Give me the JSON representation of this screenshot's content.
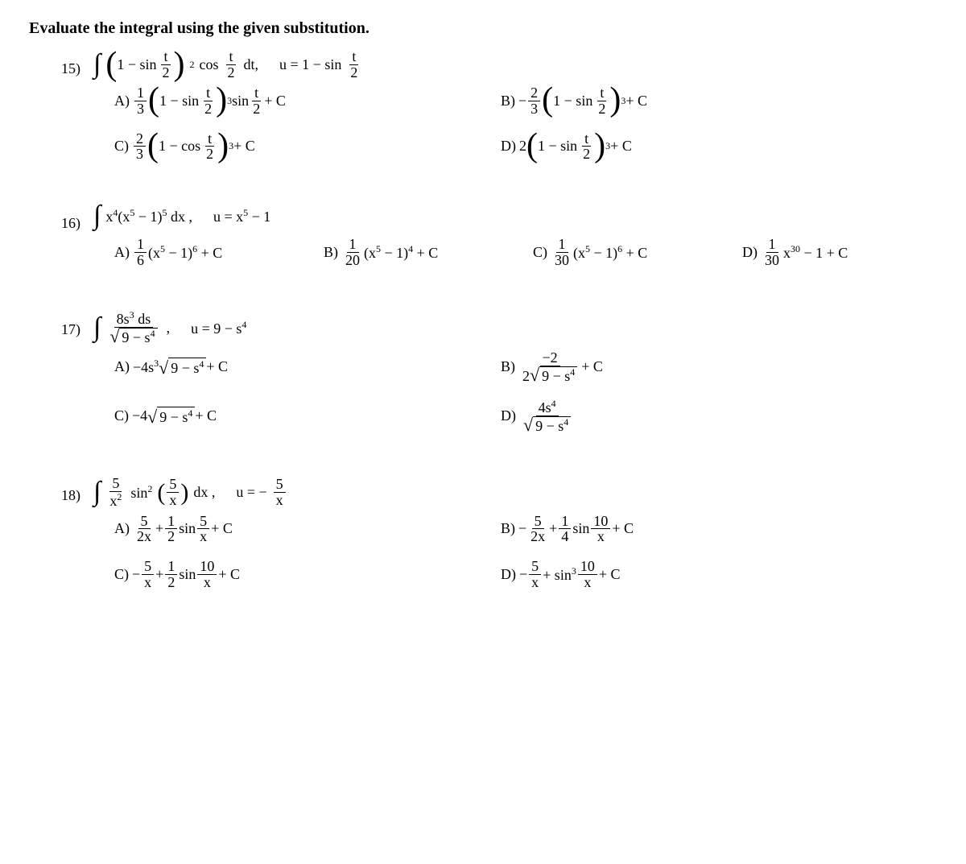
{
  "header": "Evaluate the integral using the given substitution.",
  "labels": {
    "A": "A)",
    "B": "B)",
    "C": "C)",
    "D": "D)"
  },
  "p15": {
    "num": "15)",
    "stem": {
      "int": "∫",
      "one_minus_sin": "1 − sin",
      "t_over_2_num": "t",
      "t_over_2_den": "2",
      "pow2": "2",
      "cos": "cos",
      "dt": "dt,",
      "u_eq": "u = 1 − sin"
    },
    "A": {
      "coef_num": "1",
      "coef_den": "3",
      "body": "1 − sin",
      "pow": "3",
      "tail": "sin",
      "plusC": "+ C"
    },
    "B": {
      "lead": "−",
      "coef_num": "2",
      "coef_den": "3",
      "body": "1 − sin",
      "pow": "3",
      "plusC": "+ C"
    },
    "C": {
      "coef_num": "2",
      "coef_den": "3",
      "body": "1 − cos",
      "pow": "3",
      "plusC": "+ C"
    },
    "D": {
      "lead": "2",
      "body": "1 − sin",
      "pow": "3",
      "plusC": "+ C"
    }
  },
  "p16": {
    "num": "16)",
    "stem": {
      "int": "∫",
      "x4": "x",
      "p4": "4",
      "open": "(x",
      "p5": "5",
      "minus1": " − 1)",
      "pow5": "5",
      "dx": " dx ,",
      "u_eq": "u = x",
      "u_p": "5",
      "u_tail": " − 1"
    },
    "A": {
      "cn": "1",
      "cd": "6",
      "open": "(x",
      "p": "5",
      "close": " − 1)",
      "pow": "6",
      "pc": " + C"
    },
    "B": {
      "cn": "1",
      "cd": "20",
      "open": "(x",
      "p": "5",
      "close": " − 1)",
      "pow": "4",
      "pc": " + C"
    },
    "C": {
      "cn": "1",
      "cd": "30",
      "open": "(x",
      "p": "5",
      "close": " − 1)",
      "pow": "6",
      "pc": " + C"
    },
    "D": {
      "cn": "1",
      "cd": "30",
      "x": "x",
      "pow": "30",
      "tail": " − 1 + C"
    }
  },
  "p17": {
    "num": "17)",
    "stem": {
      "int": "∫",
      "top": "8s",
      "top_p": "3",
      "top_tail": " ds",
      "rad_body": "9 − s",
      "rad_p": "4",
      "comma": ",",
      "u_eq": "u = 9 − s",
      "u_p": "4"
    },
    "A": {
      "pre": "−4s",
      "pre_p": "3",
      "rad": "9 − s",
      "rad_p": "4",
      "pc": " + C"
    },
    "B": {
      "top": "−2",
      "bot_pre": "2",
      "rad": "9 − s",
      "rad_p": "4",
      "pc": " + C"
    },
    "C": {
      "pre": "−4",
      "rad": "9 − s",
      "rad_p": "4",
      "pc": " + C"
    },
    "D": {
      "top": "4s",
      "top_p": "4",
      "rad": "9 − s",
      "rad_p": "4"
    }
  },
  "p18": {
    "num": "18)",
    "stem": {
      "int": "∫",
      "coef_num": "5",
      "coef_den_x": "x",
      "coef_den_p": "2",
      "sin": "sin",
      "sin_p": "2",
      "inner_num": "5",
      "inner_den": "x",
      "dx": " dx ,",
      "u_eq": "u = −",
      "u_num": "5",
      "u_den": "x"
    },
    "A": {
      "t1n": "5",
      "t1d": "2x",
      "plus": " + ",
      "t2n": "1",
      "t2d": "2",
      "sin": " sin ",
      "t3n": "5",
      "t3d": "x",
      "pc": " + C"
    },
    "B": {
      "lead": "− ",
      "t1n": "5",
      "t1d": "2x",
      "plus": " + ",
      "t2n": "1",
      "t2d": "4",
      "sin": " sin ",
      "t3n": "10",
      "t3d": "x",
      "pc": " + C"
    },
    "C": {
      "lead": "− ",
      "t1n": "5",
      "t1d": "x",
      "plus": " + ",
      "t2n": "1",
      "t2d": "2",
      "sin": " sin ",
      "t3n": "10",
      "t3d": "x",
      "pc": " + C"
    },
    "D": {
      "lead": "− ",
      "t1n": "5",
      "t1d": "x",
      "plus": " + sin",
      "sin_p": "3",
      "sp": " ",
      "t3n": "10",
      "t3d": "x",
      "pc": " + C"
    }
  }
}
